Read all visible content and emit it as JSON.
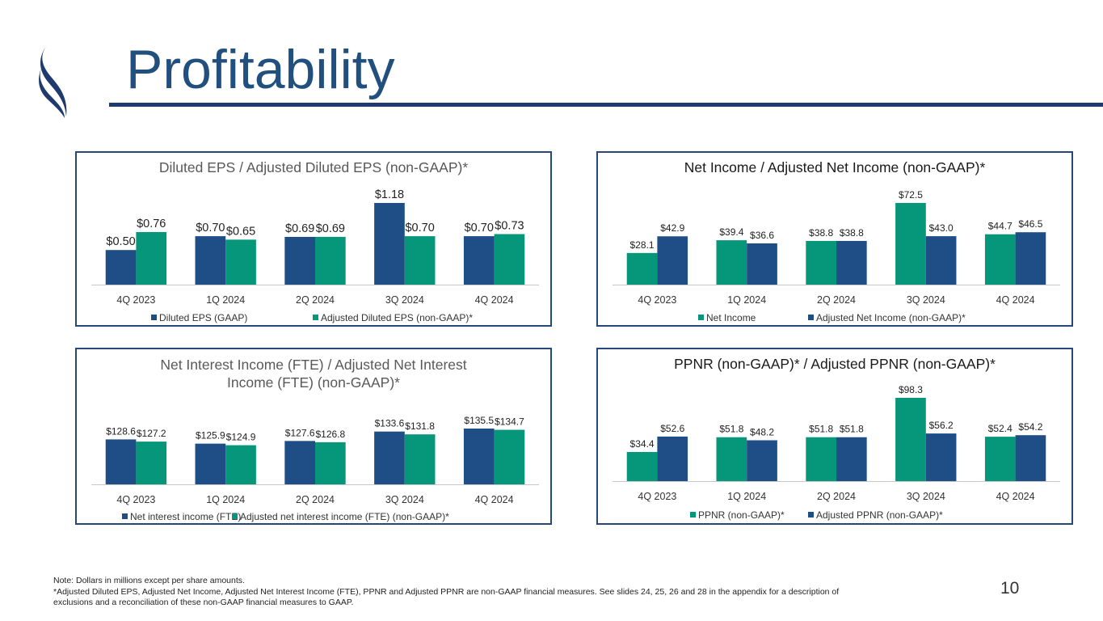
{
  "slide": {
    "title": "Profitability",
    "page_number": "10",
    "footnote_lines": [
      "Note: Dollars in millions except per share amounts.",
      "*Adjusted Diluted EPS, Adjusted Net Income, Adjusted Net Interest Income (FTE), PPNR and Adjusted PPNR are non-GAAP financial measures. See slides 24, 25, 26 and 28 in the appendix for a description of",
      "exclusions and a reconciliation of these non-GAAP financial measures to GAAP."
    ],
    "logo_icon": "swirl-logo-icon",
    "colors": {
      "navy": "#1F4E86",
      "teal": "#06967A",
      "accent_text": "#22507E",
      "border": "#25477A"
    }
  },
  "chart_data": [
    {
      "id": "eps",
      "type": "bar",
      "title": "Diluted EPS / Adjusted Diluted EPS (non-GAAP)*",
      "categories": [
        "4Q 2023",
        "1Q 2024",
        "2Q 2024",
        "3Q 2024",
        "4Q 2024"
      ],
      "series": [
        {
          "name": "Diluted EPS (GAAP)",
          "color": "#1F4E86",
          "values": [
            0.5,
            0.7,
            0.69,
            1.18,
            0.7
          ],
          "labels": [
            "$0.50",
            "$0.70",
            "$0.69",
            "$1.18",
            "$0.70"
          ]
        },
        {
          "name": "Adjusted Diluted EPS (non-GAAP)*",
          "color": "#06967A",
          "values": [
            0.76,
            0.65,
            0.69,
            0.7,
            0.73
          ],
          "labels": [
            "$0.76",
            "$0.65",
            "$0.69",
            "$0.70",
            "$0.73"
          ]
        }
      ],
      "ylim": [
        0,
        1.3
      ],
      "grid": false,
      "legend": "bottom"
    },
    {
      "id": "net_income",
      "type": "bar",
      "title": "Net Income / Adjusted Net Income (non-GAAP)*",
      "categories": [
        "4Q 2023",
        "1Q 2024",
        "2Q 2024",
        "3Q 2024",
        "4Q 2024"
      ],
      "series": [
        {
          "name": "Net Income",
          "color": "#06967A",
          "values": [
            28.1,
            39.4,
            38.8,
            72.5,
            44.7
          ],
          "labels": [
            "$28.1",
            "$39.4",
            "$38.8",
            "$72.5",
            "$44.7"
          ]
        },
        {
          "name": "Adjusted Net Income (non-GAAP)*",
          "color": "#1F4E86",
          "values": [
            42.9,
            36.6,
            38.8,
            43.0,
            46.5
          ],
          "labels": [
            "$42.9",
            "$36.6",
            "$38.8",
            "$43.0",
            "$46.5"
          ]
        }
      ],
      "ylim": [
        0,
        77
      ],
      "grid": false,
      "legend": "bottom"
    },
    {
      "id": "nii",
      "type": "bar",
      "title": "Net Interest Income (FTE) / Adjusted Net Interest Income (FTE) (non-GAAP)*",
      "title_lines": [
        "Net Interest Income (FTE) / Adjusted Net Interest",
        "Income (FTE) (non-GAAP)*"
      ],
      "categories": [
        "4Q 2023",
        "1Q 2024",
        "2Q 2024",
        "3Q 2024",
        "4Q 2024"
      ],
      "series": [
        {
          "name": "Net interest income (FTE)",
          "color": "#1F4E86",
          "values": [
            128.6,
            125.9,
            127.6,
            133.6,
            135.5
          ],
          "labels": [
            "$128.6",
            "$125.9",
            "$127.6",
            "$133.6",
            "$135.5"
          ]
        },
        {
          "name": "Adjusted net interest income (FTE) (non-GAAP)*",
          "color": "#06967A",
          "values": [
            127.2,
            124.9,
            126.8,
            131.8,
            134.7
          ],
          "labels": [
            "$127.2",
            "$124.9",
            "$126.8",
            "$131.8",
            "$134.7"
          ]
        }
      ],
      "ylim": [
        100,
        140
      ],
      "grid": false,
      "legend": "bottom"
    },
    {
      "id": "ppnr",
      "type": "bar",
      "title": "PPNR (non-GAAP)* / Adjusted PPNR (non-GAAP)*",
      "categories": [
        "4Q 2023",
        "1Q 2024",
        "2Q 2024",
        "3Q 2024",
        "4Q 2024"
      ],
      "series": [
        {
          "name": "PPNR (non-GAAP)*",
          "color": "#06967A",
          "values": [
            34.4,
            51.8,
            51.8,
            98.3,
            52.4
          ],
          "labels": [
            "$34.4",
            "$51.8",
            "$51.8",
            "$98.3",
            "$52.4"
          ]
        },
        {
          "name": "Adjusted PPNR (non-GAAP)*",
          "color": "#1F4E86",
          "values": [
            52.6,
            48.2,
            51.8,
            56.2,
            54.2
          ],
          "labels": [
            "$52.6",
            "$48.2",
            "$51.8",
            "$56.2",
            "$54.2"
          ]
        }
      ],
      "ylim": [
        0,
        104
      ],
      "grid": false,
      "legend": "bottom"
    }
  ]
}
